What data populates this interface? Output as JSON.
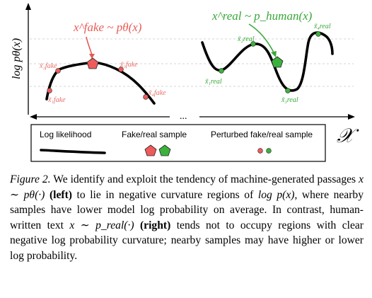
{
  "figure": {
    "y_axis_label": "log pθ(x)",
    "x_axis_label": "𝒳",
    "ellipsis": "...",
    "left": {
      "annotation": "x^fake ~ pθ(x)",
      "points": [
        "x̃₁fake",
        "x̃₂fake",
        "x̃₃fake",
        "x̃₄fake"
      ],
      "color_curve_point": "#ef5b5b",
      "color_label": "#e8706b"
    },
    "right": {
      "annotation": "x^real ~ p_human(x)",
      "points": [
        "x̃₁real",
        "x̃₂real",
        "x̃₃real",
        "x̃₄real"
      ],
      "color_point": "#3cb13c",
      "color_label": "#38a838"
    },
    "legend": {
      "items": [
        {
          "label": "Log likelihood",
          "symbol": "brush-stroke"
        },
        {
          "label": "Fake/real sample",
          "symbol": "pentagons"
        },
        {
          "label": "Perturbed fake/real sample",
          "symbol": "dots"
        }
      ]
    }
  },
  "caption": {
    "label": "Figure 2.",
    "s1": "We identify and exploit the tendency of machine-generated passages",
    "m1": "x ∼ pθ(·)",
    "left_word": "(left)",
    "s2": "to lie in negative curvature regions of",
    "m2": "log p(x)",
    "s3": ", where nearby samples have lower model log probability on average.  In contrast, human-written text",
    "m3": "x ∼ p_real(·)",
    "right_word": "(right)",
    "s4": "tends not to occupy regions with clear negative log probability curvature; nearby samples may have higher or lower log probability."
  }
}
